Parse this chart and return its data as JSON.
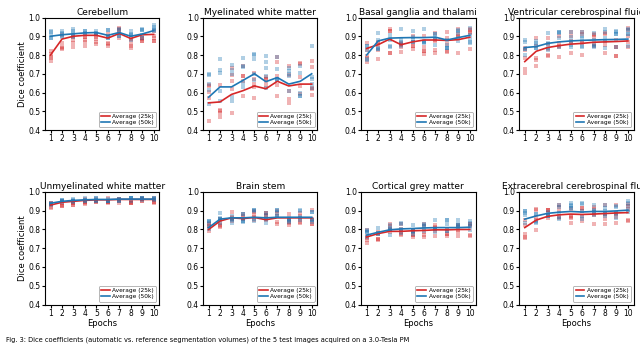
{
  "titles": [
    "Cerebellum",
    "Myelinated white matter",
    "Basal ganglia and thalami",
    "Ventricular cerebrospinal fluid",
    "Unmyelinated white matter",
    "Brain stem",
    "Cortical grey matter",
    "Extracerebral cerebrospinal fluid"
  ],
  "epochs": [
    1,
    2,
    3,
    4,
    5,
    6,
    7,
    8,
    9,
    10
  ],
  "avg_25k": [
    [
      0.8,
      0.885,
      0.9,
      0.905,
      0.905,
      0.89,
      0.915,
      0.888,
      0.908,
      0.91
    ],
    [
      0.545,
      0.55,
      0.59,
      0.61,
      0.635,
      0.62,
      0.66,
      0.635,
      0.645,
      0.645
    ],
    [
      0.835,
      0.855,
      0.885,
      0.855,
      0.87,
      0.88,
      0.88,
      0.878,
      0.882,
      0.895
    ],
    [
      0.765,
      0.82,
      0.84,
      0.85,
      0.858,
      0.862,
      0.868,
      0.87,
      0.872,
      0.875
    ],
    [
      0.93,
      0.945,
      0.95,
      0.955,
      0.958,
      0.958,
      0.96,
      0.96,
      0.96,
      0.96
    ],
    [
      0.8,
      0.845,
      0.862,
      0.858,
      0.864,
      0.852,
      0.862,
      0.862,
      0.862,
      0.862
    ],
    [
      0.76,
      0.778,
      0.79,
      0.79,
      0.793,
      0.795,
      0.798,
      0.798,
      0.8,
      0.8
    ],
    [
      0.81,
      0.85,
      0.87,
      0.878,
      0.882,
      0.88,
      0.882,
      0.885,
      0.888,
      0.89
    ]
  ],
  "avg_50k": [
    [
      0.9,
      0.908,
      0.913,
      0.918,
      0.92,
      0.905,
      0.92,
      0.9,
      0.912,
      0.93
    ],
    [
      0.575,
      0.63,
      0.63,
      0.665,
      0.7,
      0.658,
      0.68,
      0.645,
      0.66,
      0.7
    ],
    [
      0.8,
      0.875,
      0.89,
      0.892,
      0.893,
      0.893,
      0.895,
      0.88,
      0.893,
      0.905
    ],
    [
      0.84,
      0.845,
      0.862,
      0.87,
      0.875,
      0.878,
      0.88,
      0.882,
      0.883,
      0.885
    ],
    [
      0.94,
      0.95,
      0.955,
      0.958,
      0.96,
      0.96,
      0.962,
      0.962,
      0.962,
      0.962
    ],
    [
      0.81,
      0.855,
      0.862,
      0.862,
      0.865,
      0.862,
      0.865,
      0.865,
      0.865,
      0.865
    ],
    [
      0.77,
      0.785,
      0.798,
      0.803,
      0.805,
      0.808,
      0.81,
      0.81,
      0.81,
      0.812
    ],
    [
      0.855,
      0.872,
      0.886,
      0.892,
      0.896,
      0.893,
      0.896,
      0.896,
      0.899,
      0.903
    ]
  ],
  "color_25k": "#d62728",
  "color_50k": "#1f77b4",
  "scatter_alpha": 0.35,
  "scatter_size": 4,
  "ylim": [
    0.4,
    1.0
  ],
  "yticks": [
    0.4,
    0.5,
    0.6,
    0.7,
    0.8,
    0.9,
    1.0
  ],
  "xlabel": "Epochs",
  "ylabel": "Dice coefficient",
  "legend_labels": [
    "Average (25k)",
    "Average (50k)"
  ],
  "caption": "Fig. 3: Dice coefficients (automatic vs. reference segmentation volumes) of the 5 test images acquired on a 3.0-Tesla PM"
}
